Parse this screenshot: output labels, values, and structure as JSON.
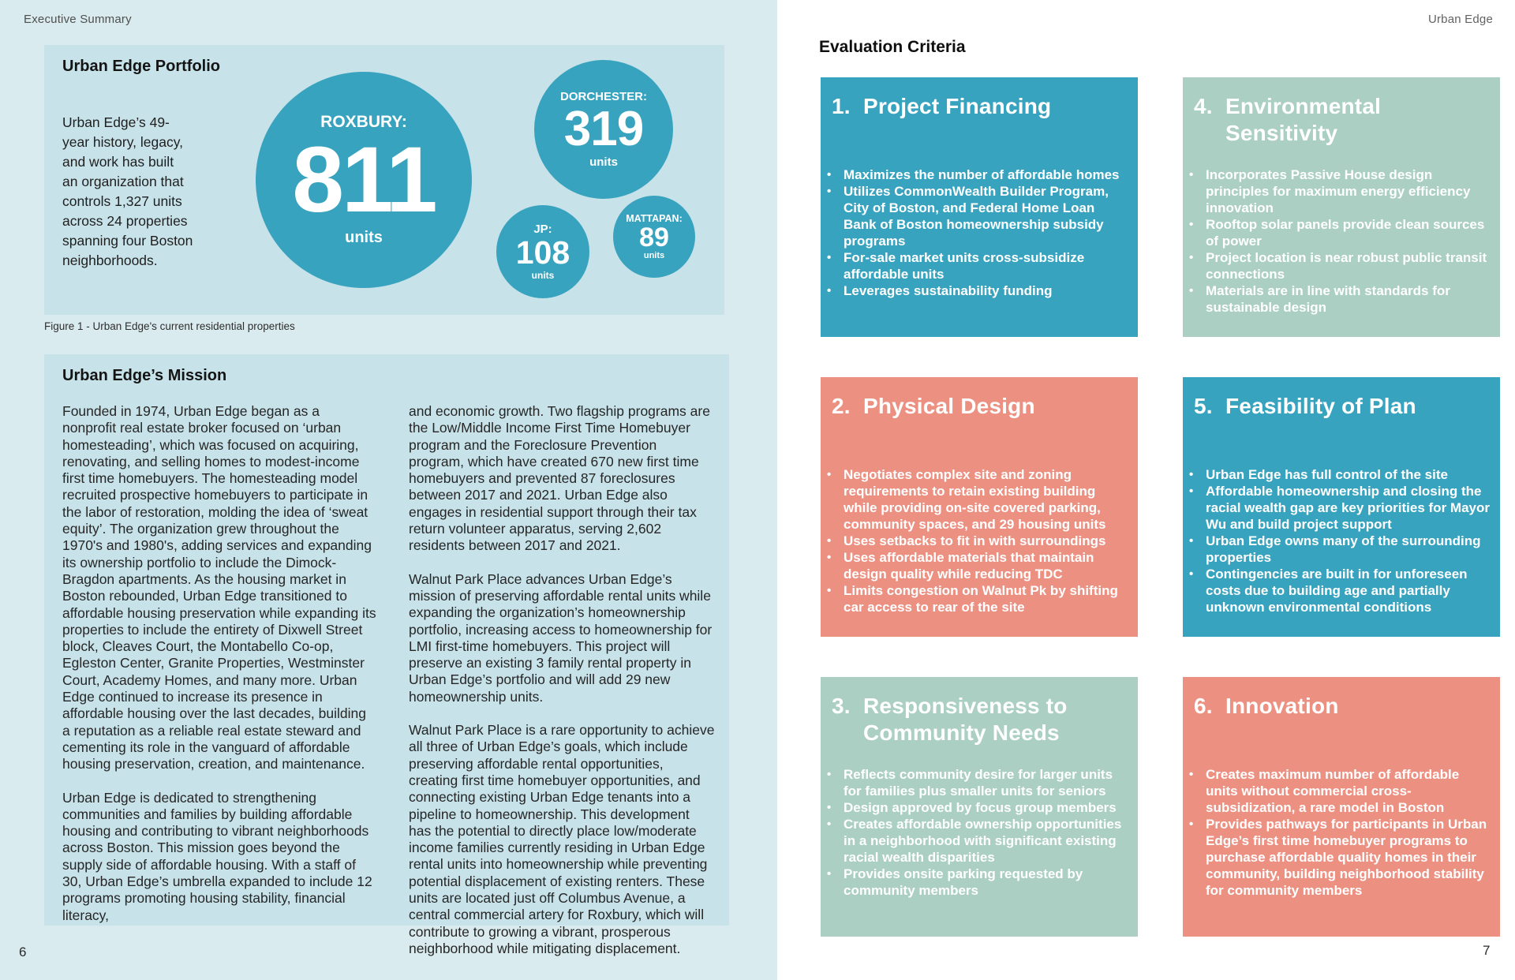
{
  "left_page": {
    "header": "Executive Summary",
    "page_number": "6",
    "portfolio": {
      "title": "Urban Edge Portfolio",
      "body": "Urban Edge’s 49-\nyear history, legacy,\nand work has built\nan organization that\ncontrols 1,327 units\nacross 24 properties\nspanning four Boston\nneighborhoods.",
      "caption": "Figure 1 -  Urban Edge's current residential properties",
      "bubbles": [
        {
          "label": "ROXBURY:",
          "value": "811",
          "unit": "units"
        },
        {
          "label": "DORCHESTER:",
          "value": "319",
          "unit": "units"
        },
        {
          "label": "JP:",
          "value": "108",
          "unit": "units"
        },
        {
          "label": "MATTAPAN:",
          "value": "89",
          "unit": "units"
        }
      ]
    },
    "mission": {
      "title": "Urban Edge’s Mission",
      "col1_p1": "Founded in 1974, Urban Edge began as a nonprofit real estate broker focused on ‘urban homesteading’, which was focused on acquiring, renovating, and selling homes to modest-income first time homebuyers. The homesteading model recruited prospective homebuyers to participate in the labor of restoration, molding the idea of ‘sweat equity’. The organization grew throughout the 1970's and 1980's, adding services and expanding its ownership portfolio to include the Dimock-Bragdon apartments. As the housing market in Boston rebounded, Urban Edge transitioned to affordable housing preservation while expanding its properties to include the entirety of Dixwell Street block, Cleaves Court, the Montabello Co-op, Egleston Center, Granite Properties, Westminster Court, Academy Homes, and many more. Urban Edge continued to increase its presence in affordable housing over the last decades, building a reputation as a reliable real estate steward and cementing its role in the vanguard of affordable housing preservation, creation, and maintenance.",
      "col1_p2": "Urban Edge is dedicated to strengthening communities and families by building affordable housing and contributing to vibrant neighborhoods across Boston. This mission goes beyond the supply side of affordable housing. With a staff of 30, Urban Edge’s umbrella expanded to include 12 programs promoting housing stability, financial literacy,",
      "col2_p1": "and economic growth. Two flagship programs are the Low/Middle Income First Time Homebuyer program and the Foreclosure Prevention program, which have created 670 new first time homebuyers and prevented 87 foreclosures between 2017 and 2021. Urban Edge also engages in residential support through their tax return volunteer apparatus, serving 2,602 residents between 2017 and 2021.",
      "col2_p2": "Walnut Park Place advances Urban Edge’s mission of preserving affordable rental units while expanding the organization’s homeownership portfolio, increasing access to homeownership for LMI first-time homebuyers. This project will preserve an existing 3 family rental property in Urban Edge’s portfolio and will add 29 new homeownership units.",
      "col2_p3": "Walnut Park Place is a rare opportunity to achieve all three of Urban Edge’s goals, which include preserving affordable rental opportunities, creating first time homebuyer opportunities, and connecting existing Urban Edge tenants into a pipeline to homeownership. This development has the potential to directly place low/moderate income families currently residing in Urban Edge rental units into homeownership while preventing potential displacement of existing renters. These units are located just off Columbus Avenue, a central commercial artery for Roxbury, which will contribute to growing a vibrant, prosperous neighborhood while mitigating displacement."
    }
  },
  "right_page": {
    "header": "Urban Edge",
    "page_number": "7",
    "heading": "Evaluation Criteria",
    "cards": [
      {
        "number": "1.",
        "title": "Project Financing",
        "color": "teal",
        "bullets": [
          "Maximizes the number of affordable homes",
          "Utilizes CommonWealth Builder Program, City of Boston, and Federal Home Loan Bank of Boston homeownership subsidy programs",
          "For-sale market units cross-subsidize affordable units",
          "Leverages sustainability funding"
        ]
      },
      {
        "number": "2.",
        "title": "Physical Design",
        "color": "salmon",
        "bullets": [
          "Negotiates complex site and zoning requirements to retain existing building while providing on-site covered parking, community spaces, and 29 housing units",
          "Uses setbacks to fit in with surroundings",
          "Uses affordable materials that maintain design quality while reducing TDC",
          "Limits congestion on Walnut Pk by shifting car access to rear of the site"
        ]
      },
      {
        "number": "3.",
        "title": "Responsiveness to Community Needs",
        "color": "sage",
        "bullets": [
          "Reflects community desire for larger units for families plus smaller units for seniors",
          "Design approved by focus group members",
          "Creates affordable ownership opportunities in a neighborhood with significant existing racial wealth disparities",
          "Provides onsite parking requested by community members"
        ]
      },
      {
        "number": "4.",
        "title": "Environmental Sensitivity",
        "color": "sage",
        "bullets": [
          "Incorporates Passive House design principles for maximum energy efficiency innovation",
          "Rooftop solar panels provide clean sources of power",
          "Project location is near robust public transit connections",
          "Materials are in line with standards for sustainable design"
        ]
      },
      {
        "number": "5.",
        "title": "Feasibility of Plan",
        "color": "teal",
        "bullets": [
          "Urban Edge has full control of the site",
          "Affordable homeownership and closing the racial wealth gap are key priorities for Mayor Wu and build project support",
          "Urban Edge owns many of the surrounding properties",
          "Contingencies are built in for unforeseen costs due to building age and partially unknown environmental conditions"
        ]
      },
      {
        "number": "6.",
        "title": "Innovation",
        "color": "salmon",
        "bullets": [
          "Creates maximum number of affordable units without commercial cross-subsidization, a rare model in Boston",
          "Provides pathways for participants in Urban Edge’s first time homebuyer programs to purchase affordable quality homes in their community, building neighborhood stability for community members"
        ]
      }
    ]
  },
  "colors": {
    "teal": "#38a3bf",
    "sage": "#abcfc3",
    "salmon": "#ec9182",
    "panel_blue": "#c7e2e9",
    "left_page_bg": "#d9ebee",
    "right_page_bg": "#ffffff"
  }
}
